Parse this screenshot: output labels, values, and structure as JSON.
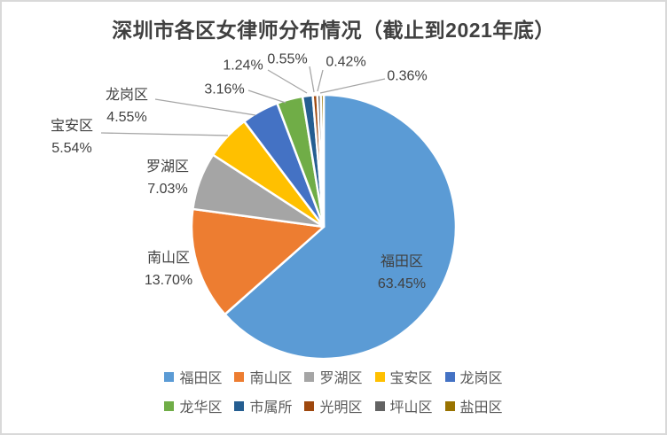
{
  "window": {
    "background": "#FFFFFF",
    "border_color": "#D9D9D9"
  },
  "chart_data": {
    "type": "pie",
    "title": "深圳市各区女律师分布情况（截止到2021年底）",
    "value_unit": "percent",
    "start_angle_deg": 0,
    "direction": "clockwise",
    "legend_position": "bottom",
    "legend_rows": [
      [
        "福田区",
        "南山区",
        "罗湖区",
        "宝安区",
        "龙岗区"
      ],
      [
        "龙华区",
        "市属所",
        "光明区",
        "坪山区",
        "盐田区"
      ]
    ],
    "series": [
      {
        "name": "福田区",
        "value": 63.45,
        "label": "63.45%",
        "color": "#5B9BD5"
      },
      {
        "name": "南山区",
        "value": 13.7,
        "label": "13.70%",
        "color": "#ED7D31"
      },
      {
        "name": "罗湖区",
        "value": 7.03,
        "label": "7.03%",
        "color": "#A5A5A5"
      },
      {
        "name": "宝安区",
        "value": 5.54,
        "label": "5.54%",
        "color": "#FFC000"
      },
      {
        "name": "龙岗区",
        "value": 4.55,
        "label": "4.55%",
        "color": "#4472C4"
      },
      {
        "name": "龙华区",
        "value": 3.16,
        "label": "3.16%",
        "color": "#70AD47"
      },
      {
        "name": "市属所",
        "value": 1.24,
        "label": "1.24%",
        "color": "#255E91"
      },
      {
        "name": "光明区",
        "value": 0.55,
        "label": "0.55%",
        "color": "#9E480E"
      },
      {
        "name": "坪山区",
        "value": 0.42,
        "label": "0.42%",
        "color": "#636363"
      },
      {
        "name": "盐田区",
        "value": 0.36,
        "label": "0.36%",
        "color": "#997300"
      }
    ]
  },
  "colors": {
    "title_text": "#404040",
    "label_text": "#404040",
    "legend_text": "#595959",
    "leader_line": "#A6A6A6",
    "slice_border": "#FFFFFF"
  }
}
